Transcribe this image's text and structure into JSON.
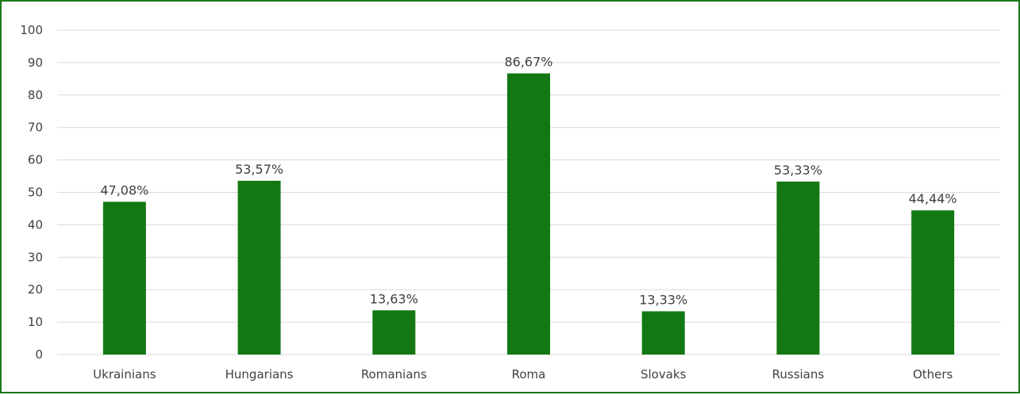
{
  "chart_data": {
    "type": "bar",
    "categories": [
      "Ukrainians",
      "Hungarians",
      "Romanians",
      "Roma",
      "Slovaks",
      "Russians",
      "Others"
    ],
    "values": [
      47.08,
      53.57,
      13.63,
      86.67,
      13.33,
      53.33,
      44.44
    ],
    "data_labels": [
      "47,08%",
      "53,57%",
      "13,63%",
      "86,67%",
      "13,33%",
      "53,33%",
      "44,44%"
    ],
    "yticks": [
      "0",
      "10",
      "20",
      "30",
      "40",
      "50",
      "60",
      "70",
      "80",
      "90",
      "100"
    ],
    "ylim": [
      0,
      100
    ],
    "grid": true,
    "legend": "none",
    "colors": {
      "bar": "#137813",
      "frame": "#1a7a1a",
      "grid": "#d9d9d9",
      "text": "#404040"
    }
  }
}
